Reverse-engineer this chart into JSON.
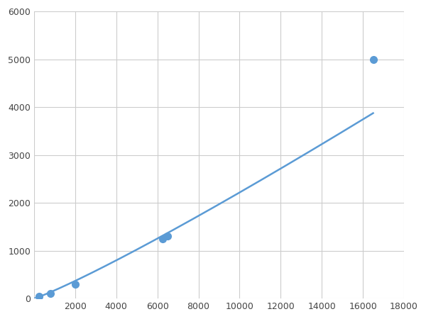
{
  "x_data": [
    250,
    800,
    2000,
    6250,
    6500,
    16500
  ],
  "y_data": [
    50,
    100,
    300,
    1250,
    1300,
    5000
  ],
  "line_color": "#5b9bd5",
  "marker_color": "#5b9bd5",
  "marker_size": 7,
  "line_width": 1.8,
  "xlim": [
    0,
    18000
  ],
  "ylim": [
    0,
    6000
  ],
  "xticks": [
    0,
    2000,
    4000,
    6000,
    8000,
    10000,
    12000,
    14000,
    16000,
    18000
  ],
  "yticks": [
    0,
    1000,
    2000,
    3000,
    4000,
    5000,
    6000
  ],
  "grid_color": "#cccccc",
  "bg_color": "#ffffff",
  "fig_bg_color": "#ffffff"
}
